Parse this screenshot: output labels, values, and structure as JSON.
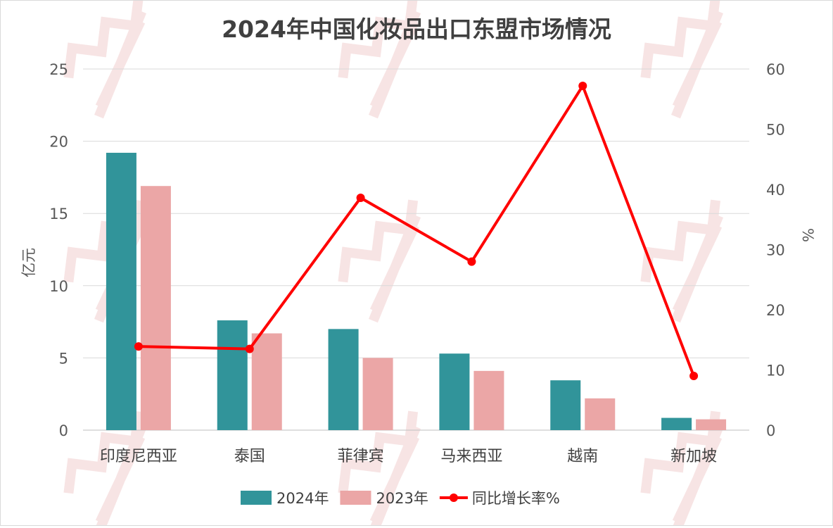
{
  "chart_data": {
    "type": "bar",
    "title": "2024年中国化妆品出口东盟市场情况",
    "categories": [
      "印度尼西亚",
      "泰国",
      "菲律宾",
      "马来西亚",
      "越南",
      "新加坡"
    ],
    "series": [
      {
        "name": "2024年",
        "type": "bar",
        "axis": "left",
        "color": "#31949A",
        "values": [
          19.2,
          7.6,
          7.0,
          5.3,
          3.45,
          0.85
        ]
      },
      {
        "name": "2023年",
        "type": "bar",
        "axis": "left",
        "color": "#EBA6A6",
        "values": [
          16.9,
          6.7,
          5.0,
          4.1,
          2.2,
          0.75
        ]
      },
      {
        "name": "同比增长率%",
        "type": "line",
        "axis": "right",
        "color": "#FF0000",
        "values": [
          13.9,
          13.5,
          38.6,
          28.0,
          57.2,
          9.0
        ]
      }
    ],
    "ylabel": "亿元",
    "ylim": [
      0,
      25
    ],
    "yticks": [
      "0",
      "5",
      "10",
      "15",
      "20",
      "25"
    ],
    "y2label": "%",
    "y2lim": [
      0,
      60
    ],
    "y2ticks": [
      "0",
      "10",
      "20",
      "30",
      "40",
      "50",
      "60"
    ],
    "grid": true,
    "legend_position": "bottom"
  }
}
